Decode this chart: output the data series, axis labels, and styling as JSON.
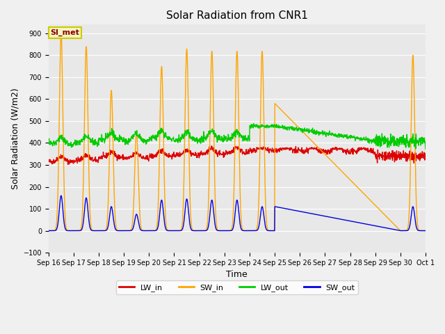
{
  "title": "Solar Radiation from CNR1",
  "xlabel": "Time",
  "ylabel": "Solar Radiation (W/m2)",
  "ylim": [
    -100,
    940
  ],
  "yticks": [
    -100,
    0,
    100,
    200,
    300,
    400,
    500,
    600,
    700,
    800,
    900
  ],
  "fig_bg_color": "#f0f0f0",
  "plot_bg_color": "#e8e8e8",
  "grid_color": "#ffffff",
  "line_colors": {
    "LW_in": "#dd0000",
    "SW_in": "#ffa500",
    "LW_out": "#00cc00",
    "SW_out": "#0000dd"
  },
  "annotation_text": "SI_met",
  "annotation_color": "#8b0000",
  "annotation_bg": "#f5f5c0",
  "annotation_border": "#cccc00",
  "xtick_labels": [
    "Sep 16",
    "Sep 17",
    "Sep 18",
    "Sep 19",
    "Sep 20",
    "Sep 21",
    "Sep 22",
    "Sep 23",
    "Sep 24",
    "Sep 25",
    "Sep 26",
    "Sep 27",
    "Sep 28",
    "Sep 29",
    "Sep 30",
    "Oct 1"
  ],
  "title_fontsize": 11,
  "label_fontsize": 9,
  "tick_fontsize": 7,
  "legend_fontsize": 8,
  "linewidth": 1.0
}
